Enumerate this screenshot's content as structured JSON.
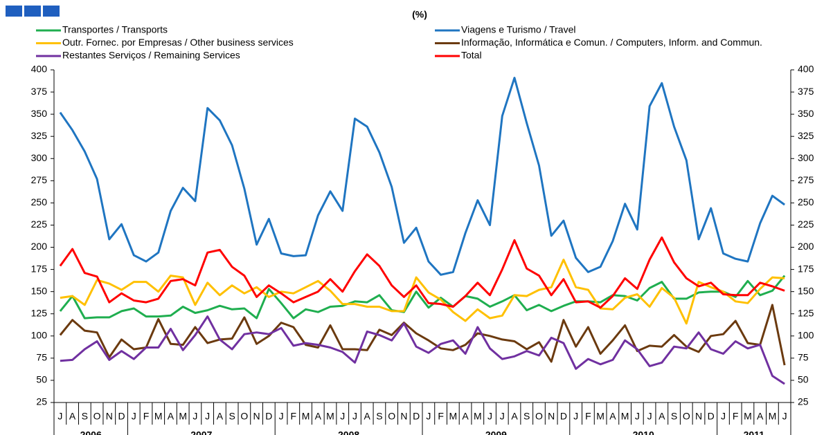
{
  "chart_data": {
    "type": "line",
    "title": "(%)",
    "categories": [
      "J",
      "A",
      "S",
      "O",
      "N",
      "D",
      "J",
      "F",
      "M",
      "A",
      "M",
      "J",
      "J",
      "A",
      "S",
      "O",
      "N",
      "D",
      "J",
      "F",
      "M",
      "A",
      "M",
      "J",
      "J",
      "A",
      "S",
      "O",
      "N",
      "D",
      "J",
      "F",
      "M",
      "A",
      "M",
      "J",
      "J",
      "A",
      "S",
      "O",
      "N",
      "D",
      "J",
      "F",
      "M",
      "A",
      "M",
      "J",
      "J",
      "A",
      "S",
      "O",
      "N",
      "D",
      "J",
      "F",
      "M",
      "A",
      "M",
      "J"
    ],
    "years": [
      "2006",
      "2007",
      "2008",
      "2009",
      "2010",
      "2011"
    ],
    "series": [
      {
        "name": "Transportes / Transports",
        "color": "#1fae4f",
        "values": [
          128,
          145,
          120,
          121,
          121,
          128,
          131,
          122,
          122,
          123,
          133,
          126,
          129,
          134,
          130,
          131,
          120,
          153,
          137,
          120,
          130,
          127,
          133,
          134,
          139,
          138,
          146,
          129,
          127,
          150,
          132,
          143,
          133,
          145,
          142,
          133,
          139,
          146,
          129,
          135,
          128,
          134,
          139,
          139,
          138,
          146,
          145,
          140,
          154,
          161,
          142,
          142,
          149,
          150,
          150,
          144,
          162,
          146,
          151,
          168
        ]
      },
      {
        "name": "Viagens e Turismo / Travel",
        "color": "#1f75c1",
        "values": [
          352,
          332,
          308,
          277,
          209,
          226,
          191,
          184,
          194,
          241,
          267,
          252,
          357,
          343,
          315,
          266,
          203,
          232,
          193,
          190,
          191,
          236,
          263,
          241,
          345,
          336,
          307,
          268,
          205,
          222,
          184,
          169,
          172,
          216,
          253,
          225,
          348,
          391,
          340,
          292,
          213,
          230,
          188,
          172,
          178,
          207,
          249,
          220,
          359,
          385,
          336,
          298,
          209,
          244,
          193,
          187,
          184,
          227,
          258,
          248
        ]
      },
      {
        "name": "Outr. Fornec. por Empresas  / Other business services",
        "color": "#ffc000",
        "values": [
          143,
          145,
          135,
          163,
          159,
          152,
          161,
          161,
          150,
          168,
          166,
          135,
          160,
          146,
          157,
          148,
          155,
          144,
          150,
          148,
          155,
          162,
          151,
          136,
          136,
          133,
          133,
          128,
          128,
          166,
          149,
          141,
          127,
          117,
          130,
          120,
          123,
          146,
          145,
          152,
          155,
          186,
          155,
          152,
          131,
          130,
          143,
          147,
          133,
          154,
          143,
          114,
          161,
          155,
          150,
          139,
          137,
          153,
          166,
          165
        ]
      },
      {
        "name": "Informação, Informática e Comun. / Computers, Inform. and Commun.",
        "color": "#6b3a0f",
        "values": [
          101,
          118,
          106,
          104,
          76,
          96,
          85,
          87,
          119,
          91,
          90,
          110,
          92,
          96,
          97,
          121,
          91,
          100,
          115,
          110,
          90,
          87,
          112,
          85,
          85,
          84,
          107,
          101,
          115,
          103,
          95,
          86,
          84,
          90,
          103,
          100,
          96,
          94,
          85,
          93,
          71,
          118,
          88,
          110,
          80,
          95,
          112,
          83,
          89,
          88,
          101,
          88,
          82,
          100,
          102,
          117,
          92,
          90,
          135,
          67
        ]
      },
      {
        "name": "Restantes Serviços / Remaining Services",
        "color": "#7030a0",
        "values": [
          72,
          73,
          85,
          94,
          73,
          83,
          74,
          87,
          87,
          108,
          84,
          101,
          122,
          96,
          85,
          102,
          104,
          102,
          109,
          89,
          92,
          90,
          87,
          82,
          70,
          105,
          101,
          95,
          114,
          88,
          81,
          91,
          95,
          80,
          110,
          86,
          74,
          77,
          83,
          78,
          98,
          92,
          63,
          74,
          68,
          73,
          95,
          85,
          66,
          70,
          88,
          86,
          104,
          85,
          80,
          94,
          86,
          90,
          55,
          46
        ]
      },
      {
        "name": "Total",
        "color": "#ff0000",
        "values": [
          179,
          198,
          171,
          167,
          138,
          148,
          140,
          138,
          142,
          162,
          164,
          157,
          194,
          197,
          178,
          168,
          144,
          157,
          148,
          138,
          144,
          150,
          164,
          150,
          173,
          192,
          179,
          157,
          144,
          157,
          137,
          136,
          133,
          145,
          160,
          146,
          175,
          208,
          176,
          168,
          146,
          164,
          138,
          139,
          132,
          145,
          165,
          153,
          186,
          211,
          183,
          165,
          156,
          160,
          147,
          146,
          146,
          160,
          156,
          151
        ]
      }
    ],
    "ylim": [
      25,
      400
    ],
    "yticks": [
      25,
      50,
      75,
      100,
      125,
      150,
      175,
      200,
      225,
      250,
      275,
      300,
      325,
      350,
      375,
      400
    ]
  }
}
